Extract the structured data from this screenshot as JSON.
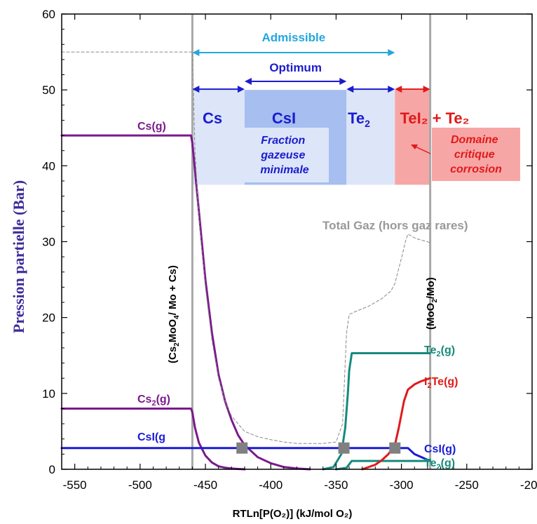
{
  "chart_data": {
    "type": "line",
    "xlabel": "RTLn[P(O₂)] (kJ/mol O₂)",
    "ylabel": "Pression partielle (Bar)",
    "xlim": [
      -560,
      -200
    ],
    "ylim": [
      0,
      60
    ],
    "x_ticks": [
      "-550",
      "-500",
      "-450",
      "-400",
      "-350",
      "-300",
      "-250",
      "-200"
    ],
    "y_ticks": [
      "0",
      "10",
      "20",
      "30",
      "40",
      "50",
      "60"
    ],
    "grid": false,
    "boundaries": [
      {
        "x": -460,
        "label": "(Cs₂MoO₄/ Mo + Cs)"
      },
      {
        "x": -278,
        "label": "(MoO₂/Mo)"
      }
    ],
    "regions": [
      {
        "label": "Cs",
        "x0": -460,
        "x1": -420,
        "y0": 37.5,
        "y1": 50,
        "color": "#dce6f8"
      },
      {
        "label": "CsI",
        "x0": -420,
        "x1": -342,
        "y0": 37.5,
        "y1": 50,
        "color": "#a6bef0"
      },
      {
        "label": "Te₂",
        "x0": -342,
        "x1": -305,
        "y0": 37.5,
        "y1": 50,
        "color": "#dce6f8"
      },
      {
        "label": "TeI₂ + Te₂",
        "x0": -305,
        "x1": -278,
        "y0": 37.5,
        "y1": 50,
        "color": "#f7a6a6"
      }
    ],
    "ranges": [
      {
        "label": "Admissible",
        "x0": -460,
        "x1": -305,
        "color": "#22a7df"
      },
      {
        "label": "Optimum",
        "x0": -420,
        "x1": -342,
        "color": "#1c1cce"
      }
    ],
    "annotations": {
      "fraction": "Fraction gazeuse minimale",
      "critique": "Domaine critique corrosion",
      "total_gaz": "Total Gaz (hors gaz rares)"
    },
    "series": [
      {
        "name": "Cs(g)",
        "color": "#7b1a8c",
        "x": [
          -560,
          -461,
          -460,
          -455,
          -450,
          -445,
          -440,
          -435,
          -430,
          -425,
          -420,
          -410,
          -400,
          -390,
          -380,
          -370
        ],
        "y": [
          44,
          44,
          43,
          34,
          25,
          18,
          12.5,
          9,
          6.5,
          4.5,
          3.2,
          1.6,
          0.8,
          0.3,
          0.1,
          0
        ]
      },
      {
        "name": "Cs₂(g)",
        "color": "#7b1a8c",
        "x": [
          -560,
          -461,
          -460,
          -458,
          -455,
          -450,
          -445,
          -440,
          -435,
          -430,
          -425,
          -420
        ],
        "y": [
          8,
          8,
          7.5,
          5.5,
          3.5,
          1.8,
          0.9,
          0.4,
          0.2,
          0.1,
          0.05,
          0
        ]
      },
      {
        "name": "CsI(g)",
        "color": "#1a1ad9",
        "x": [
          -560,
          -295,
          -290,
          -278
        ],
        "y": [
          2.8,
          2.8,
          2.0,
          1.1
        ]
      },
      {
        "name": "Te₂(g)",
        "color": "#168a7c",
        "x": [
          -360,
          -352,
          -346,
          -343,
          -341,
          -340,
          -338,
          -278
        ],
        "y": [
          0,
          0.3,
          2.0,
          5.5,
          10,
          13,
          15.3,
          15.3
        ]
      },
      {
        "name": "Te₂(g)",
        "color": "#168a7c",
        "x": [
          -350,
          -342,
          -338,
          -278
        ],
        "y": [
          0,
          0.2,
          1.1,
          1.1
        ]
      },
      {
        "name": "I₂Te(g)",
        "color": "#e01a1a",
        "x": [
          -330,
          -320,
          -315,
          -310,
          -305,
          -302,
          -298,
          -295,
          -290,
          -285,
          -278
        ],
        "y": [
          0,
          0.6,
          1.2,
          2.0,
          3.2,
          5.5,
          9.0,
          10.5,
          11.2,
          11.6,
          12
        ]
      },
      {
        "name": "Total Gaz (hors gaz rares)",
        "color": "#888888",
        "dashed": true,
        "x": [
          -560,
          -460,
          -458,
          -455,
          -450,
          -445,
          -440,
          -435,
          -430,
          -420,
          -410,
          -400,
          -390,
          -380,
          -370,
          -360,
          -350,
          -345,
          -342,
          -340,
          -335,
          -325,
          -315,
          -308,
          -305,
          -302,
          -299,
          -297,
          -295,
          -290,
          -285,
          -280,
          -278
        ],
        "y": [
          55,
          55,
          42,
          33,
          24,
          17,
          12,
          9,
          7,
          5,
          4.3,
          3.9,
          3.6,
          3.4,
          3.4,
          3.4,
          3.6,
          6,
          18,
          20.4,
          20.8,
          21.5,
          22.5,
          23.5,
          24.5,
          26.5,
          28.5,
          30,
          31,
          30.5,
          30.2,
          30,
          29.8
        ]
      }
    ],
    "curve_labels": [
      {
        "text": "Cs(g)",
        "color": "#7b1a8c"
      },
      {
        "text": "Cs₂(g)",
        "color": "#7b1a8c"
      },
      {
        "text": "CsI(g",
        "color": "#1a1ad9"
      },
      {
        "text": "Te₂(g)",
        "color": "#168a7c"
      },
      {
        "text": "I₂Te(g)",
        "color": "#e01a1a"
      },
      {
        "text": "CsI(g)",
        "color": "#1a1ad9"
      },
      {
        "text": "Te₂(g)",
        "color": "#168a7c"
      }
    ],
    "intersections": [
      [
        -422,
        2.8
      ],
      [
        -344,
        2.8
      ],
      [
        -305,
        2.8
      ]
    ]
  }
}
